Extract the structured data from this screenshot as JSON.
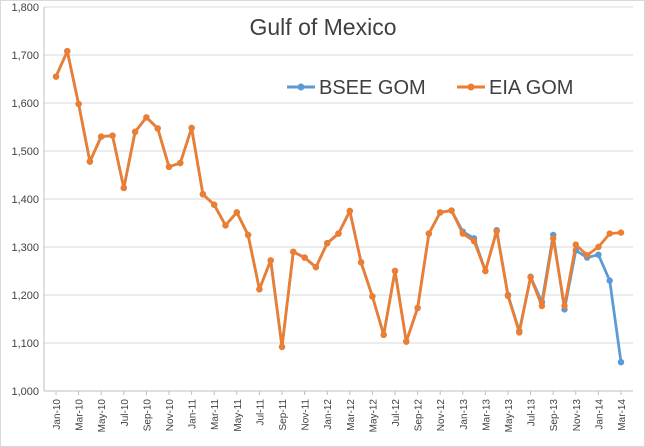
{
  "chart_data": {
    "type": "line",
    "title": "Gulf of Mexico",
    "xlabel": "",
    "ylabel": "",
    "ylim": [
      1000,
      1800
    ],
    "yticks": [
      1000,
      1100,
      1200,
      1300,
      1400,
      1500,
      1600,
      1700,
      1800
    ],
    "ytick_labels": [
      "1,000",
      "1,100",
      "1,200",
      "1,300",
      "1,400",
      "1,500",
      "1,600",
      "1,700",
      "1,800"
    ],
    "grid": "horizontal",
    "legend_position": "top-right",
    "x": [
      "Jan-10",
      "Feb-10",
      "Mar-10",
      "Apr-10",
      "May-10",
      "Jun-10",
      "Jul-10",
      "Aug-10",
      "Sep-10",
      "Oct-10",
      "Nov-10",
      "Dec-10",
      "Jan-11",
      "Feb-11",
      "Mar-11",
      "Apr-11",
      "May-11",
      "Jun-11",
      "Jul-11",
      "Aug-11",
      "Sep-11",
      "Oct-11",
      "Nov-11",
      "Dec-11",
      "Jan-12",
      "Feb-12",
      "Mar-12",
      "Apr-12",
      "May-12",
      "Jun-12",
      "Jul-12",
      "Aug-12",
      "Sep-12",
      "Oct-12",
      "Nov-12",
      "Dec-12",
      "Jan-13",
      "Feb-13",
      "Mar-13",
      "Apr-13",
      "May-13",
      "Jun-13",
      "Jul-13",
      "Aug-13",
      "Sep-13",
      "Oct-13",
      "Nov-13",
      "Dec-13",
      "Jan-14",
      "Feb-14",
      "Mar-14"
    ],
    "xtick_labels": [
      "Jan-10",
      "Mar-10",
      "May-10",
      "Jul-10",
      "Sep-10",
      "Nov-10",
      "Jan-11",
      "Mar-11",
      "May-11",
      "Jul-11",
      "Sep-11",
      "Nov-11",
      "Jan-12",
      "Mar-12",
      "May-12",
      "Jul-12",
      "Sep-12",
      "Nov-12",
      "Jan-13",
      "Mar-13",
      "May-13",
      "Jul-13",
      "Sep-13",
      "Nov-13",
      "Jan-14",
      "Mar-14"
    ],
    "series": [
      {
        "name": "BSEE GOM",
        "color": "#5b9bd5",
        "values": [
          1655,
          1708,
          1598,
          1478,
          1530,
          1532,
          1423,
          1540,
          1570,
          1547,
          1467,
          1475,
          1548,
          1410,
          1388,
          1345,
          1372,
          1325,
          1212,
          1272,
          1092,
          1290,
          1278,
          1258,
          1308,
          1328,
          1375,
          1268,
          1197,
          1117,
          1250,
          1103,
          1173,
          1328,
          1372,
          1376,
          1332,
          1318,
          1250,
          1335,
          1200,
          1125,
          1238,
          1185,
          1325,
          1170,
          1293,
          1278,
          1284,
          1230,
          1060
        ]
      },
      {
        "name": "EIA GOM",
        "color": "#ed7d31",
        "values": [
          1655,
          1708,
          1598,
          1478,
          1530,
          1532,
          1423,
          1540,
          1570,
          1547,
          1467,
          1475,
          1548,
          1410,
          1388,
          1345,
          1372,
          1325,
          1212,
          1272,
          1092,
          1290,
          1278,
          1258,
          1308,
          1328,
          1375,
          1268,
          1197,
          1117,
          1250,
          1103,
          1173,
          1328,
          1372,
          1376,
          1328,
          1312,
          1250,
          1333,
          1198,
          1122,
          1237,
          1177,
          1318,
          1177,
          1305,
          1283,
          1300,
          1328,
          1330
        ]
      }
    ]
  }
}
